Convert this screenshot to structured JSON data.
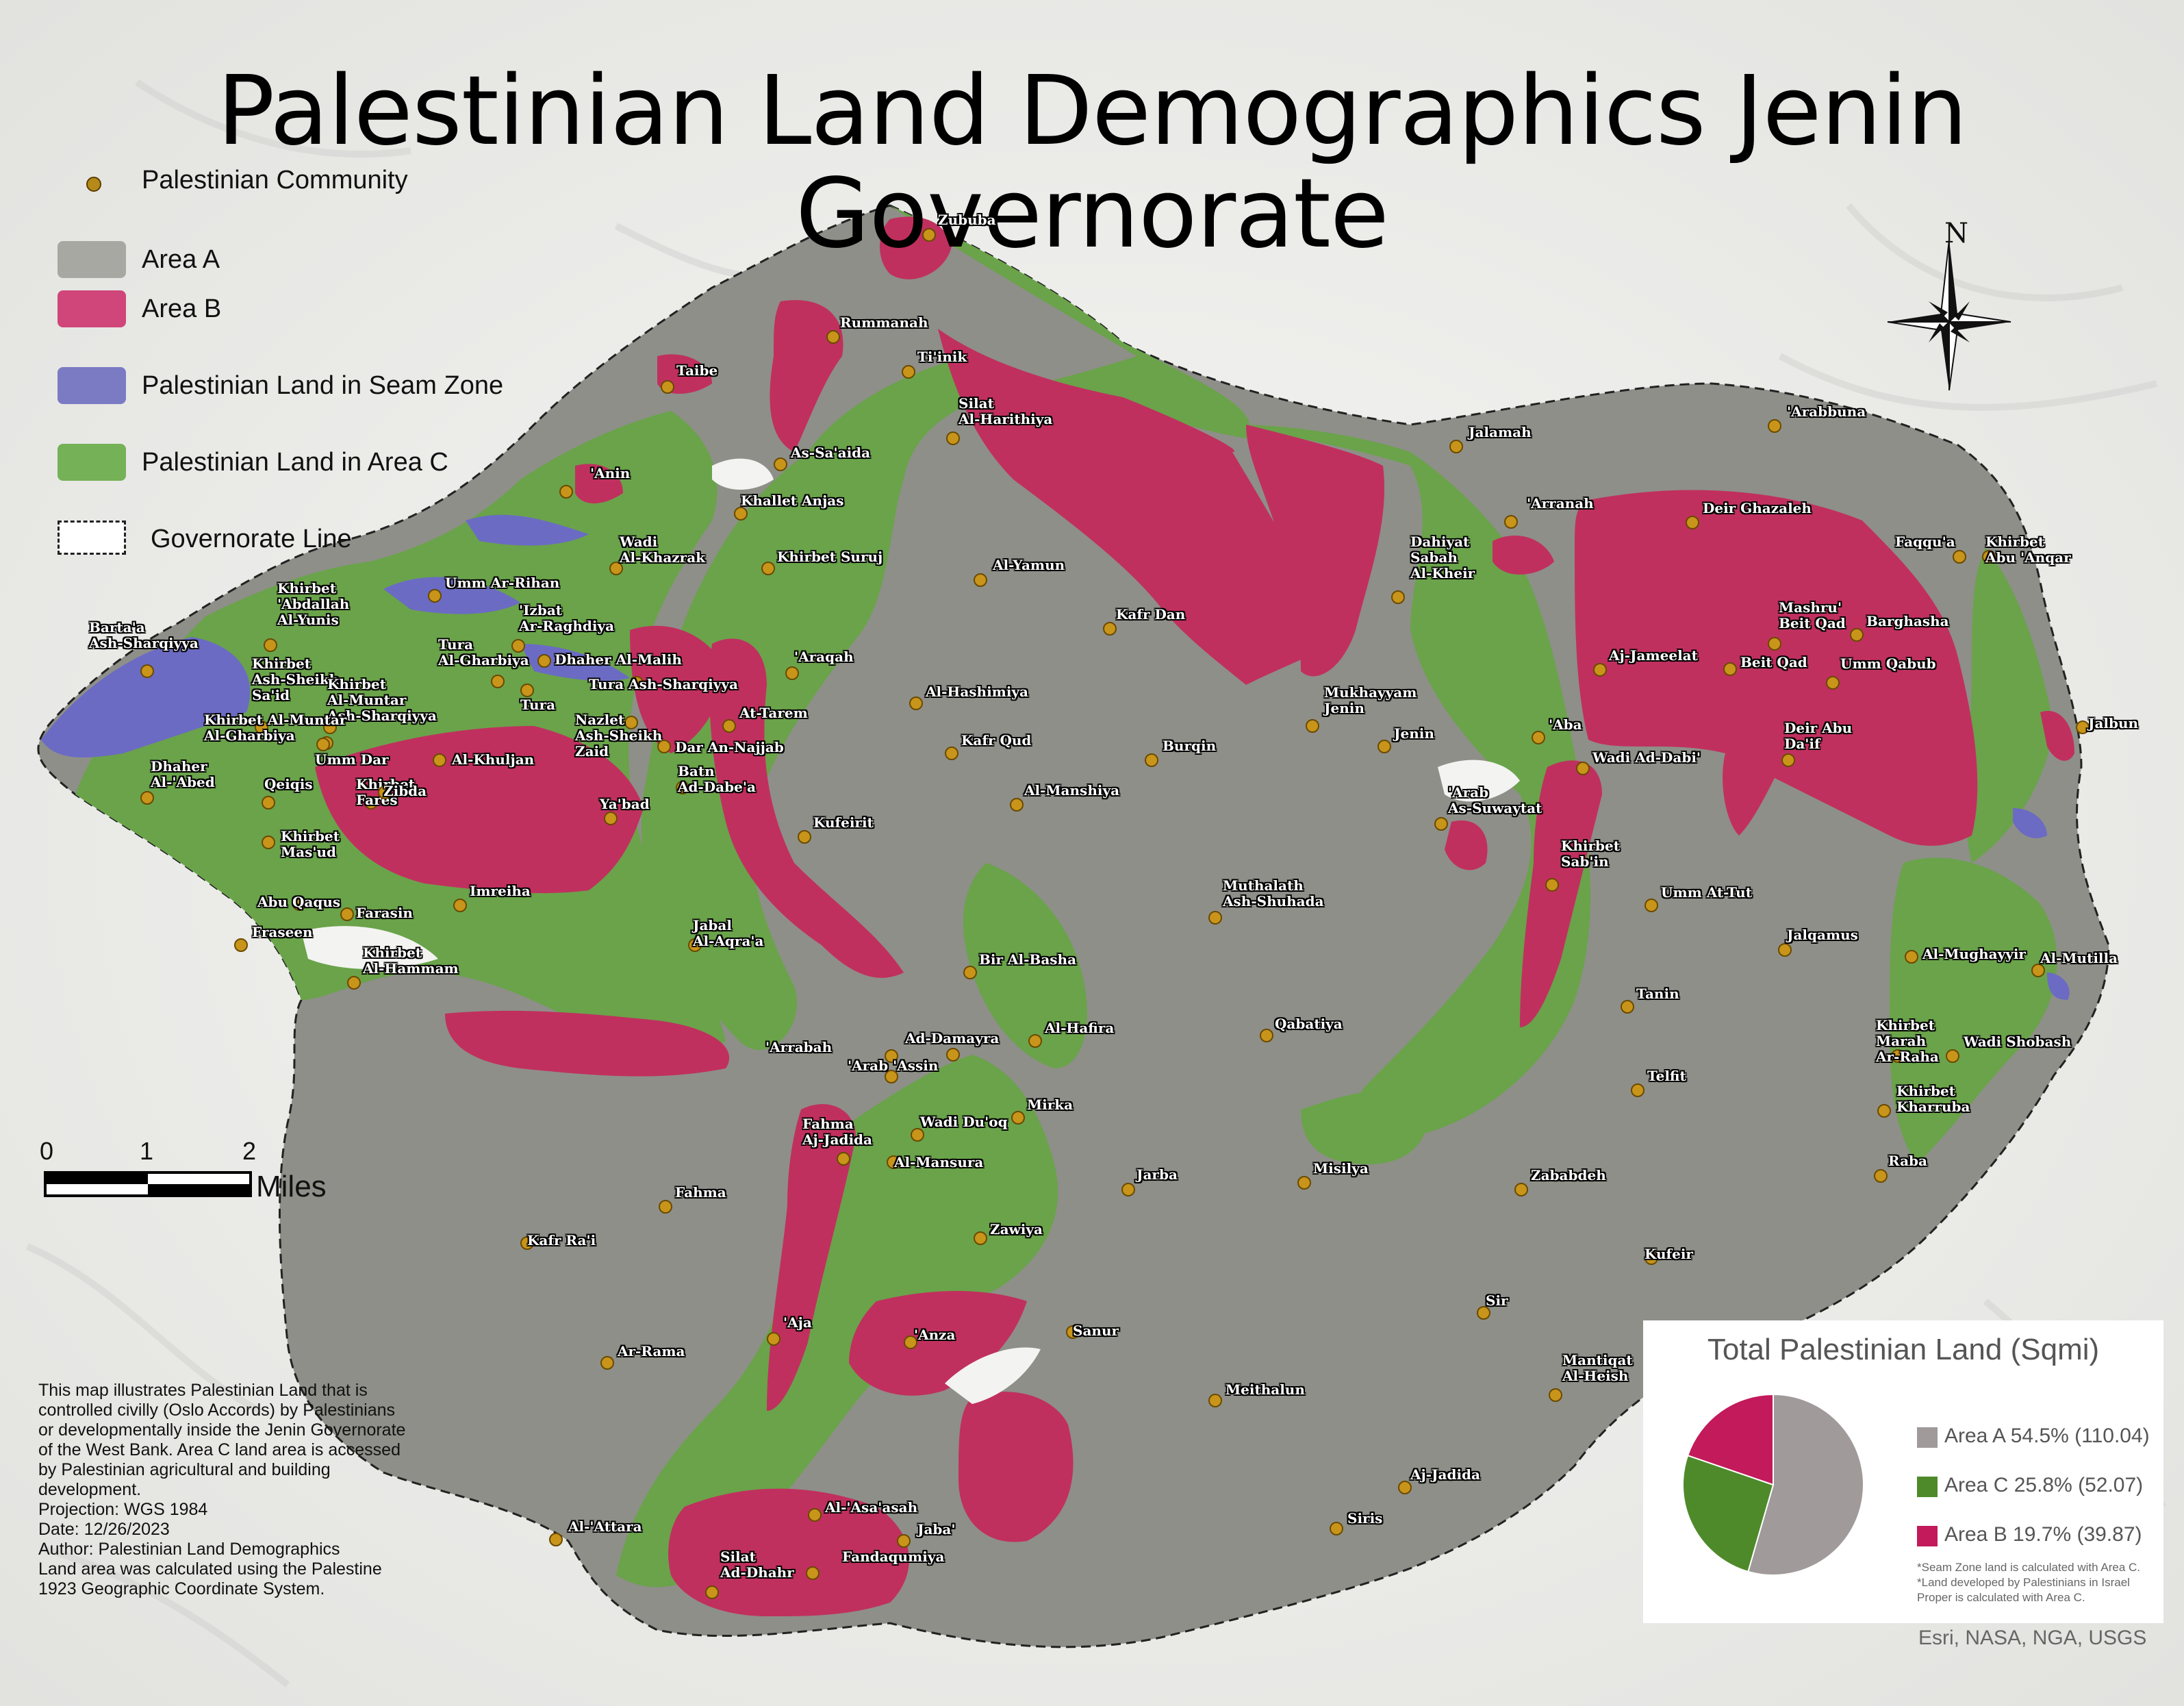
{
  "title": "Palestinian Land Demographics Jenin Governorate",
  "legend": {
    "community": "Palestinian Community",
    "area_a": "Area A",
    "area_b": "Area B",
    "seam": "Palestinian Land in Seam Zone",
    "area_c": "Palestinian Land in Area C",
    "governorate": "Governorate Line"
  },
  "colors": {
    "area_a": "#8e8f88",
    "area_b": "#c0305f",
    "area_c": "#6aa34a",
    "seam": "#6b6bc4",
    "community": "#c8951a",
    "pie_a": "#a09a9a",
    "pie_c": "#4e8a2a",
    "pie_b": "#c21a5a"
  },
  "north_label": "N",
  "scalebar": {
    "tick0": "0",
    "tick1": "1",
    "tick2": "2",
    "units": "Miles"
  },
  "note": [
    "This map illustrates Palestinian Land that is controlled civilly (Oslo Accords) by Palestinians or developmentally inside the Jenin Governorate of the West Bank. Area C land area is accessed by Palestinian agricultural and building development.",
    "Projection: WGS 1984",
    "Date: 12/26/2023",
    "Author: Palestinian Land Demographics",
    "Land area was calculated using the Palestine 1923 Geographic Coordinate System."
  ],
  "chart_data": {
    "type": "pie",
    "title": "Total Palestinian Land (Sqmi)",
    "categories": [
      "Area A",
      "Area C",
      "Area B"
    ],
    "values": [
      110.04,
      52.07,
      39.87
    ],
    "percents": [
      54.5,
      25.8,
      19.7
    ],
    "labels": [
      "Area A 54.5% (110.04)",
      "Area C 25.8% (52.07)",
      "Area B 19.7% (39.87)"
    ],
    "footnotes": [
      "*Seam Zone land is calculated with Area C.",
      "*Land developed by Palestinians in Israel Proper is calculated with Area C."
    ]
  },
  "credits": "Esri, NASA, NGA, USGS",
  "places": [
    "Zububa",
    "Rummanah",
    "Ti'inik",
    "Taibe",
    "Silat\nAl-Harithiya",
    "As-Sa'aida",
    "'Anin",
    "Khallet Anjas",
    "Wadi\nAl-Khazrak",
    "Khirbet Suruj",
    "Umm Ar-Rihan",
    "Khirbet\n'Abdallah\nAl-Yunis",
    "'Izbat\nAr-Raghdiya",
    "Barta'a\nAsh-Sharqiyya",
    "Tura\nAl-Gharbiya",
    "Dhaher Al-Malih",
    "Khirbet\nAsh-Sheikh\nSa'id",
    "Tura Ash-Sharqiyya",
    "Khirbet\nAl-Muntar\nAsh-Sharqiyya",
    "Tura",
    "Khirbet Al-Muntar\nAl-Gharbiya",
    "Nazlet\nAsh-Sheikh\nZaid",
    "At-Tarem",
    "Umm Dar",
    "Al-Khuljan",
    "Dar An-Najjab",
    "Dhaher\nAl-'Abed",
    "Qeiqis",
    "Khirbet\nFares",
    "Zibda",
    "Batn\nAd-Dabe'a",
    "Ya'bad",
    "Khirbet\nMas'ud",
    "Abu Qaqus",
    "Imreiha",
    "Farasin",
    "Fraseen",
    "Jabal\nAl-Aqra'a",
    "Khirbet\nAl-Hammam",
    "Al-Yamun",
    "'Araqah",
    "Kafr Dan",
    "Al-Hashimiya",
    "Kafr Qud",
    "Al-Manshiya",
    "Kufeirit",
    "Burqin",
    "Bir Al-Basha",
    "Al-Hafira",
    "Ad-Damayra",
    "'Arrabah",
    "'Arab 'Assin",
    "Mirka",
    "Wadi Du'oq",
    "Fahma\nAj-Jadida",
    "Al-Mansura",
    "Fahma",
    "Jarba",
    "Kafr Ra'i",
    "Zawiya",
    "'Aja",
    "'Anza",
    "Sanur",
    "Ar-Rama",
    "Al-'Asa'asah",
    "Jaba'",
    "Fandaqumiya",
    "Silat\nAd-Dhahr",
    "Al-'Attara",
    "Meithalun",
    "Siris",
    "Aj-Jadida",
    "Mantiqat\nAl-Heish",
    "Sir",
    "Kufeir",
    "Zababdeh",
    "Misilya",
    "Qabatiya",
    "Muthalath\nAsh-Shuhada",
    "Jenin",
    "Mukhayyam\nJenin",
    "Dahiyat\nSabah\nAl-Kheir",
    "Jalamah",
    "'Arranah",
    "'Arabbuna",
    "Deir Ghazaleh",
    "Khirbet\nAbu 'Anqar",
    "Faqqu'a",
    "Mashru'\nBeit Qad",
    "Barghasha",
    "Aj-Jameelat",
    "Beit Qad",
    "Umm Qabub",
    "'Aba",
    "Wadi Ad-Dabi'",
    "Deir Abu\nDa'if",
    "Jalbun",
    "'Arab\nAs-Suwaytat",
    "Khirbet\nSab'in",
    "Umm At-Tut",
    "Jalqamus",
    "Tanin",
    "Al-Mughayyir",
    "Al-Mutilla",
    "Khirbet\nMarah\nAr-Raha",
    "Wadi Shobash",
    "Telfit",
    "Khirbet\nKharruba",
    "Raba"
  ]
}
